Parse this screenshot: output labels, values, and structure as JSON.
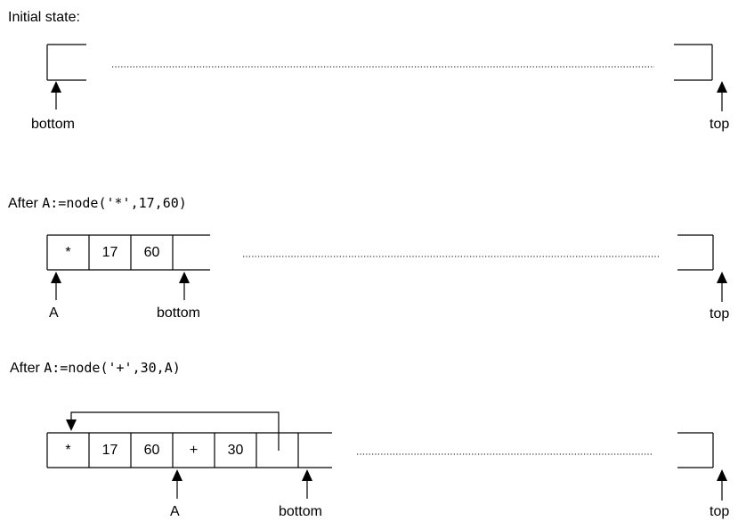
{
  "sections": [
    {
      "caption": "Initial state:",
      "labels": {
        "bottom": "bottom",
        "top": "top"
      }
    },
    {
      "caption_prefix": "After ",
      "caption_code": "A:=node('*',17,60)",
      "cells": [
        "*",
        "17",
        "60"
      ],
      "labels": {
        "a": "A",
        "bottom": "bottom",
        "top": "top"
      }
    },
    {
      "caption_prefix": "After ",
      "caption_code": "A:=node('+',30,A)",
      "cells": [
        "*",
        "17",
        "60",
        "+",
        "30"
      ],
      "labels": {
        "a": "A",
        "bottom": "bottom",
        "top": "top"
      }
    }
  ]
}
